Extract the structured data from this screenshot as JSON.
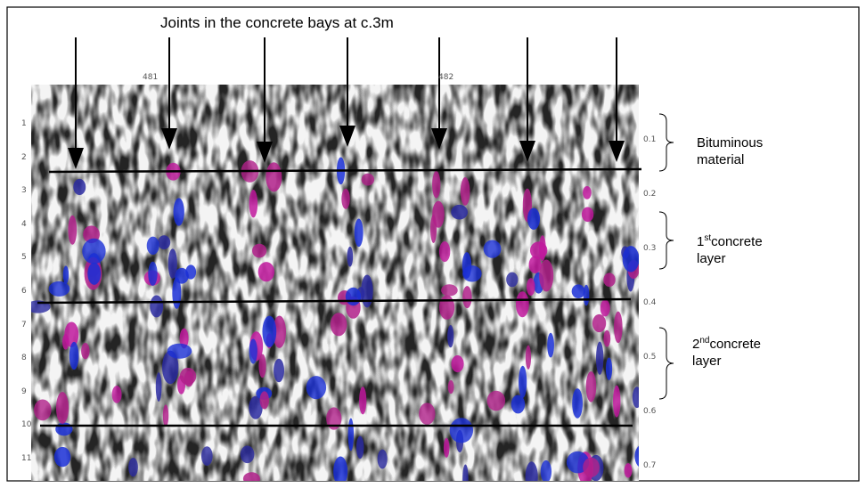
{
  "title": "Joints in the concrete bays at c.3m",
  "scale": {
    "top": [
      "481",
      "482"
    ],
    "left": [
      "1",
      "2",
      "3",
      "4",
      "5",
      "6",
      "7",
      "8",
      "9",
      "10",
      "11"
    ],
    "right": [
      "0.1",
      "0.2",
      "0.3",
      "0.4",
      "0.5",
      "0.6",
      "0.7"
    ]
  },
  "annotations": [
    {
      "lines": [
        "Bituminous",
        "material"
      ]
    },
    {
      "number": "1",
      "suffix": "st",
      "word": "concrete",
      "line2": "layer"
    },
    {
      "number": "2",
      "suffix": "nd",
      "word": "concrete",
      "line2": "layer"
    }
  ]
}
